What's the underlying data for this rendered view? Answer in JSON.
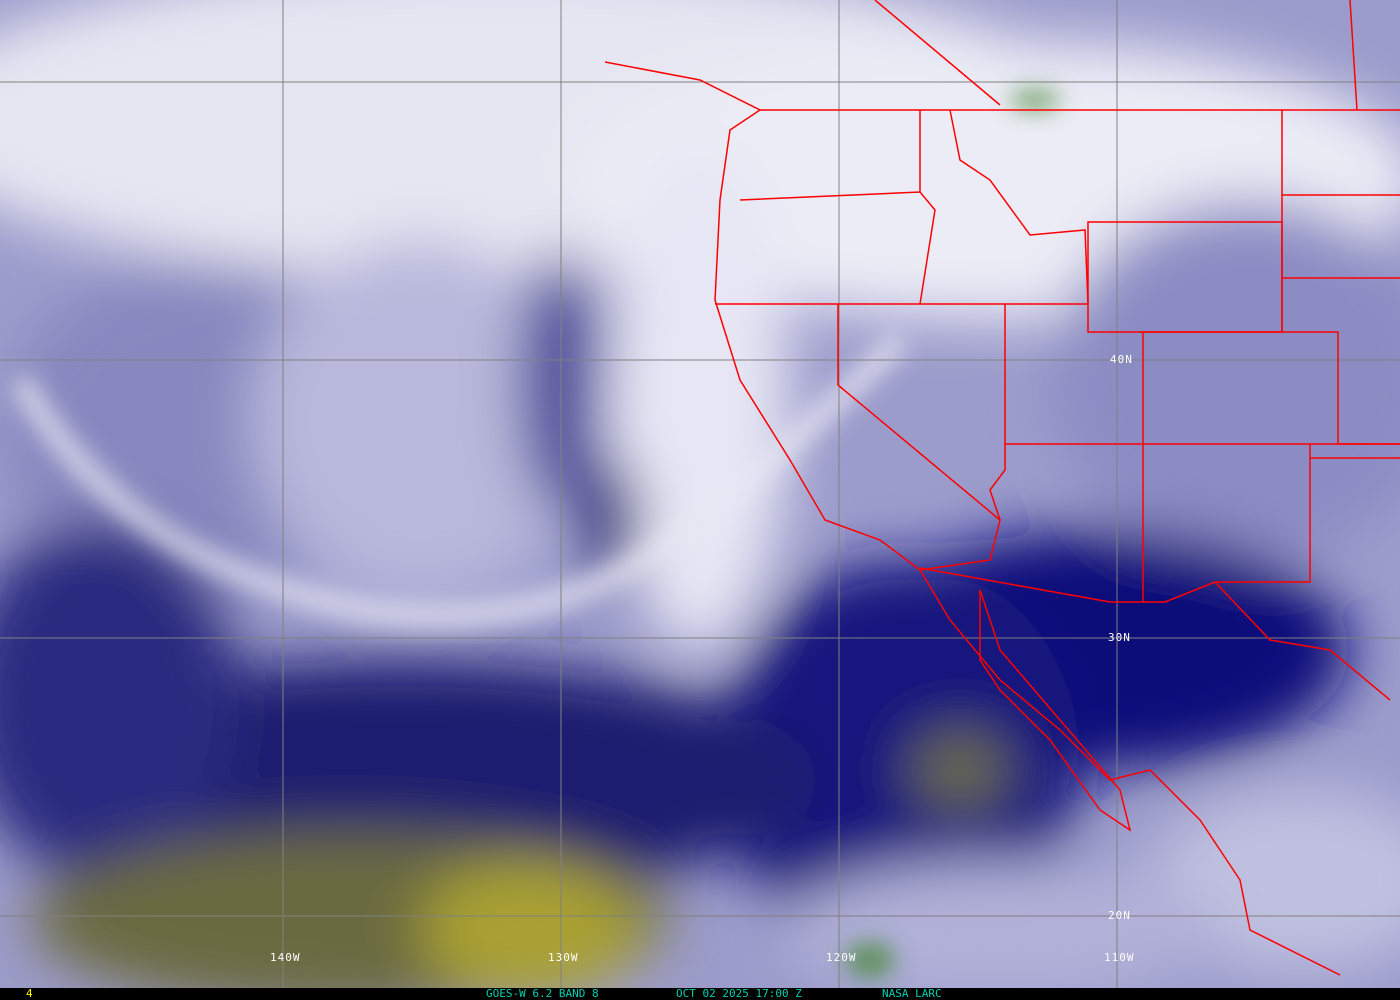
{
  "status_bar": {
    "frame": "4",
    "satellite": "GOES-W 6.2 BAND 8",
    "datetime": "OCT 02 2025 17:00 Z",
    "source": "NASA LARC",
    "frame_color": "#ffff00",
    "text_color": "#00d0b0"
  },
  "grid_labels": {
    "lon": [
      "140W",
      "130W",
      "120W",
      "110W"
    ],
    "lat": [
      "40N",
      "30N",
      "20N"
    ]
  },
  "colors": {
    "border": "#ff0000",
    "grid": "#808080",
    "dry": "#0a0a78",
    "moist": "#e8e8f4",
    "very_dry": "#a8a020"
  }
}
